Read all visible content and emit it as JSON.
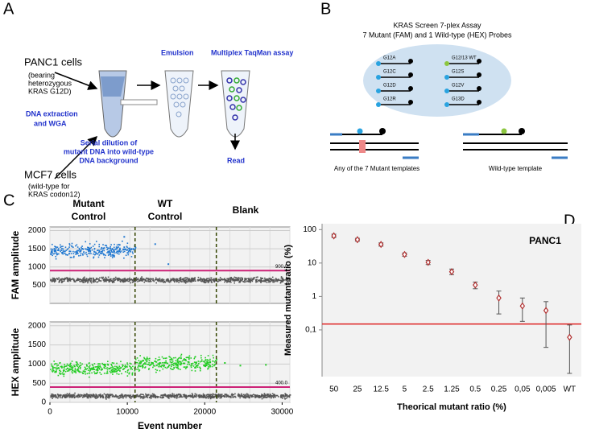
{
  "panel_a": {
    "letter": "A",
    "panc1": "PANC1 cells",
    "panc1_note": [
      "(bearing",
      "heterozygous",
      "KRAS G12D)"
    ],
    "extraction": [
      "DNA extraction",
      "and WGA"
    ],
    "emulsion": "Emulsion",
    "taqman": "Multiplex TaqMan assay",
    "dilution": [
      "Serial dilution of",
      "mutant DNA into wild-type",
      "DNA background"
    ],
    "mcf7": "MCF7 cells",
    "mcf7_note": [
      "(wild-type for",
      "KRAS codon12)"
    ],
    "read": "Read"
  },
  "panel_b": {
    "letter": "B",
    "title": [
      "KRAS Screen 7-plex Assay",
      "7 Mutant (FAM) and  1 Wild-type (HEX) Probes"
    ],
    "probes_left": [
      "G12A",
      "G12C",
      "G12D",
      "G12R"
    ],
    "probes_right": [
      "G12/13 WT",
      "G12S",
      "G12V",
      "G13D"
    ],
    "mutant_template": "Any of the 7 Mutant templates",
    "wt_template": "Wild-type template"
  },
  "panel_c": {
    "letter": "C",
    "headers": [
      [
        "Mutant",
        "Control"
      ],
      [
        "WT",
        "Control"
      ],
      [
        "Blank"
      ]
    ]
  },
  "panel_d": {
    "letter": "D"
  },
  "chart_data": [
    {
      "type": "scatter",
      "y_label": "FAM amplitude",
      "xlim": [
        0,
        31000
      ],
      "ylim": [
        0,
        2100
      ],
      "yticks": [
        500,
        1000,
        1500,
        2000
      ],
      "dividers": [
        11000,
        21500
      ],
      "threshold": {
        "value": 900,
        "label": "900.0"
      },
      "grid": true,
      "clusters": [
        {
          "color": "#1f77d0",
          "xlim": [
            0,
            11000
          ],
          "ylim": [
            1150,
            1780
          ]
        },
        {
          "color": "#555555",
          "xlim": [
            0,
            31000
          ],
          "ylim": [
            560,
            760
          ]
        }
      ],
      "outliers": {
        "color": "#1f77d0",
        "x": [
          13500,
          15200,
          9500
        ],
        "y": [
          1650,
          1100,
          1850
        ]
      }
    },
    {
      "type": "scatter",
      "y_label": "HEX amplitude",
      "x_label": "Event number",
      "xlim": [
        0,
        31000
      ],
      "ylim": [
        0,
        2100
      ],
      "xticks": [
        0,
        10000,
        20000,
        30000
      ],
      "yticks": [
        0,
        500,
        1000,
        1500,
        2000
      ],
      "dividers": [
        11000,
        21500
      ],
      "threshold": {
        "value": 400,
        "label": "400.0"
      },
      "grid": true,
      "clusters": [
        {
          "color": "#22cc22",
          "xlim": [
            0,
            11000
          ],
          "ylim": [
            650,
            1150
          ]
        },
        {
          "color": "#22cc22",
          "xlim": [
            11000,
            21500
          ],
          "ylim": [
            780,
            1300
          ]
        },
        {
          "color": "#555555",
          "xlim": [
            0,
            31000
          ],
          "ylim": [
            100,
            260
          ]
        }
      ],
      "outliers": {
        "color": "#22cc22",
        "x": [
          24500,
          27800,
          22500
        ],
        "y": [
          980,
          1000,
          1050
        ]
      }
    },
    {
      "type": "errorbar",
      "title": "PANC1",
      "x_label": "Theorical mutant ratio (%)",
      "y_label": "Measured mutant  ratio (%)",
      "log_scale": true,
      "color": "#b03030",
      "categories": [
        "50",
        "25",
        "12.5",
        "5",
        "2.5",
        "1.25",
        "0.5",
        "0.25",
        "0,05",
        "0,005",
        "WT"
      ],
      "values": [
        65,
        50,
        36,
        18,
        10.5,
        5.5,
        2.2,
        0.9,
        0.52,
        0.38,
        0.06
      ],
      "error_low": [
        58,
        45,
        32,
        16,
        9,
        4.5,
        1.7,
        0.3,
        0.18,
        0.03,
        0.005
      ],
      "error_high": [
        73,
        55,
        40,
        20,
        12,
        6.6,
        2.7,
        1.45,
        0.9,
        0.7,
        0.14
      ],
      "ylim": [
        0.004,
        150
      ],
      "yticks": [
        100,
        10,
        1,
        {
          "value": 0.1,
          "label": "0,1"
        }
      ],
      "hline": 0.15,
      "hline_color": "#dd2222"
    }
  ]
}
